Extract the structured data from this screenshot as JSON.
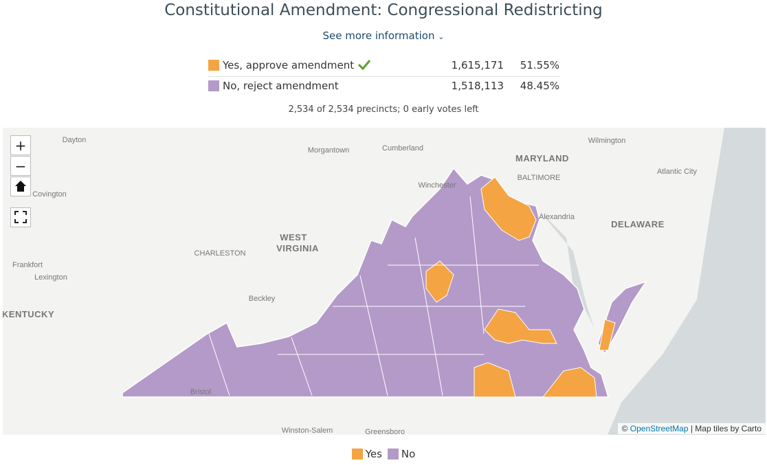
{
  "header": {
    "title": "Constitutional Amendment: Congressional Redistricting",
    "more": "See more information"
  },
  "results": [
    {
      "name": "Yes, approve amendment",
      "votes": "1,615,171",
      "pct": "51.55%",
      "color": "#f4a442"
    },
    {
      "name": "No, reject amendment",
      "votes": "1,518,113",
      "pct": "48.45%",
      "color": "#b49ac8"
    }
  ],
  "precincts": "2,534 of 2,534 precincts; 0 early votes left",
  "map": {
    "controls": [
      "+",
      "−"
    ],
    "labels": [
      "Dayton",
      "Morgantown",
      "Cumberland",
      "Winchester",
      "MARYLAND",
      "BALTIMORE",
      "Wilmington",
      "Atlantic City",
      "Covington",
      "Alexandria",
      "DELAWARE",
      "WEST",
      "VIRGINIA",
      "CHARLESTON",
      "Frankfort",
      "Lexington",
      "Beckley",
      "KENTUCKY",
      "Bristol",
      "Winston-Salem",
      "Greensboro"
    ],
    "attribution": {
      "prefix": "©",
      "link": "OpenStreetMap",
      "suffix": "| Map tiles by Carto"
    }
  },
  "legend": [
    {
      "name": "Yes",
      "color": "#f4a442"
    },
    {
      "name": "No",
      "color": "#b49ac8"
    }
  ]
}
